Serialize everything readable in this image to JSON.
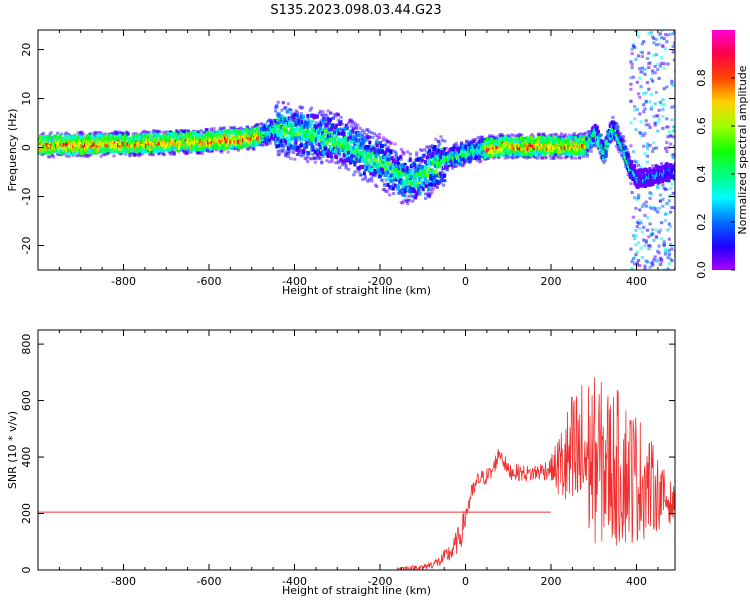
{
  "title": "S135.2023.098.03.44.G23",
  "chart_data": [
    {
      "type": "heatmap",
      "xlabel": "Height of straight line (km)",
      "ylabel": "Frequency (Hz)",
      "xlim": [
        -1000,
        490
      ],
      "ylim": [
        -25,
        24
      ],
      "xticks": [
        -800,
        -600,
        -400,
        -200,
        0,
        200,
        400
      ],
      "yticks": [
        -20,
        -10,
        0,
        10,
        20
      ],
      "ridge": {
        "x": [
          -1000,
          -800,
          -600,
          -500,
          -440,
          -400,
          -350,
          -300,
          -250,
          -200,
          -150,
          -120,
          -80,
          -40,
          0,
          50,
          100,
          150,
          200,
          250,
          280,
          300,
          320,
          340,
          360,
          380,
          400,
          430,
          460,
          490
        ],
        "y": [
          0.5,
          0.8,
          1.3,
          2,
          4,
          3,
          2.5,
          1.5,
          -1,
          -3,
          -6,
          -6.5,
          -4,
          -2,
          -1,
          0,
          0.3,
          0.3,
          0.3,
          0.3,
          0.5,
          3,
          -1,
          4,
          1,
          -4,
          -6.5,
          -6,
          -5,
          -5
        ]
      },
      "colorbar": {
        "label": "Normalized spectral amplitude",
        "range": [
          0,
          1
        ],
        "ticks": [
          "0.0",
          "0.2",
          "0.4",
          "0.6",
          "0.8"
        ]
      }
    },
    {
      "type": "line",
      "xlabel": "Height of straight line (km)",
      "ylabel": "SNR (10 * v/v)",
      "xlim": [
        -1000,
        490
      ],
      "ylim": [
        0,
        850
      ],
      "xticks": [
        -800,
        -600,
        -400,
        -200,
        0,
        200,
        400
      ],
      "yticks": [
        0,
        200,
        400,
        600,
        800
      ],
      "reference_level": 205,
      "series": [
        {
          "color": "#f03030",
          "x": [
            -160,
            -100,
            -60,
            -30,
            -10,
            10,
            30,
            60,
            80,
            100,
            150,
            200,
            250,
            280,
            300,
            330,
            360,
            400,
            430,
            460,
            490
          ],
          "y": [
            5,
            10,
            30,
            70,
            130,
            250,
            320,
            340,
            420,
            350,
            340,
            360,
            380,
            400,
            390,
            370,
            360,
            330,
            300,
            260,
            230
          ],
          "spread": [
            5,
            10,
            20,
            40,
            50,
            40,
            30,
            30,
            30,
            30,
            30,
            40,
            260,
            300,
            300,
            290,
            280,
            240,
            180,
            110,
            60
          ]
        }
      ]
    }
  ]
}
